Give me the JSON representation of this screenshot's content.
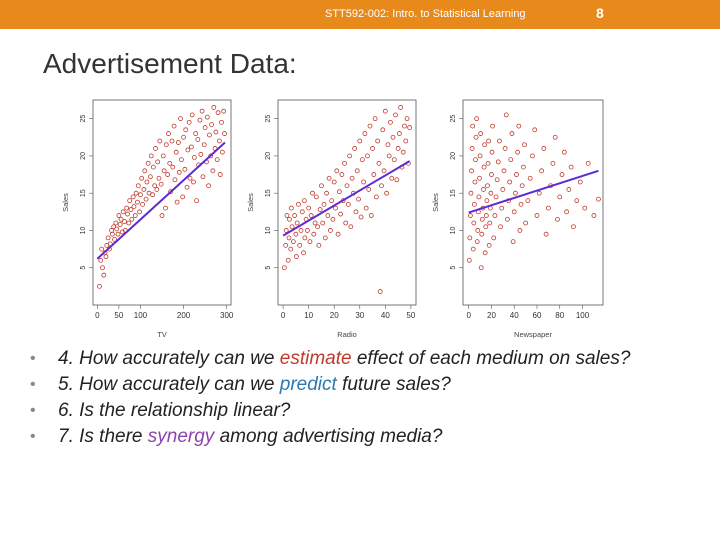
{
  "header": {
    "course": "STT592-002: Intro. to Statistical Learning",
    "page": "8"
  },
  "title": "Advertisement Data:",
  "chart_data": [
    {
      "type": "scatter",
      "xlabel": "TV",
      "ylabel": "Sales",
      "xticks": [
        0,
        50,
        100,
        200,
        300
      ],
      "yticks": [
        5,
        10,
        15,
        20,
        25
      ],
      "xlim": [
        -10,
        310
      ],
      "ylim": [
        0,
        27.5
      ],
      "fit_line": {
        "x": [
          0,
          296
        ],
        "y": [
          6.2,
          21.8
        ]
      },
      "points": [
        [
          5,
          2.5
        ],
        [
          8,
          6
        ],
        [
          10,
          7.5
        ],
        [
          12,
          5
        ],
        [
          15,
          4
        ],
        [
          18,
          7
        ],
        [
          20,
          6.5
        ],
        [
          22,
          8
        ],
        [
          25,
          9
        ],
        [
          28,
          7.5
        ],
        [
          30,
          8.2
        ],
        [
          33,
          10
        ],
        [
          35,
          9.5
        ],
        [
          38,
          10.5
        ],
        [
          40,
          8.8
        ],
        [
          43,
          11
        ],
        [
          45,
          10.2
        ],
        [
          48,
          9.5
        ],
        [
          50,
          12
        ],
        [
          53,
          10.8
        ],
        [
          55,
          11.5
        ],
        [
          58,
          9.8
        ],
        [
          60,
          12.5
        ],
        [
          63,
          11.2
        ],
        [
          65,
          10
        ],
        [
          68,
          13
        ],
        [
          70,
          12.2
        ],
        [
          73,
          11
        ],
        [
          75,
          14
        ],
        [
          78,
          12.8
        ],
        [
          80,
          11.5
        ],
        [
          83,
          14.5
        ],
        [
          85,
          13.2
        ],
        [
          88,
          12
        ],
        [
          90,
          15
        ],
        [
          93,
          13.8
        ],
        [
          95,
          16
        ],
        [
          98,
          12.5
        ],
        [
          100,
          14.8
        ],
        [
          103,
          17
        ],
        [
          105,
          13.5
        ],
        [
          108,
          15.5
        ],
        [
          110,
          18
        ],
        [
          113,
          14.2
        ],
        [
          115,
          16.5
        ],
        [
          118,
          19
        ],
        [
          120,
          15
        ],
        [
          123,
          17.2
        ],
        [
          125,
          20
        ],
        [
          128,
          14.8
        ],
        [
          130,
          18.5
        ],
        [
          133,
          16
        ],
        [
          135,
          21
        ],
        [
          138,
          15.5
        ],
        [
          140,
          19.2
        ],
        [
          143,
          17
        ],
        [
          145,
          22
        ],
        [
          148,
          16.2
        ],
        [
          150,
          12
        ],
        [
          153,
          20
        ],
        [
          155,
          18
        ],
        [
          158,
          13
        ],
        [
          160,
          21.5
        ],
        [
          163,
          17.5
        ],
        [
          165,
          23
        ],
        [
          168,
          19
        ],
        [
          170,
          15.2
        ],
        [
          173,
          22
        ],
        [
          175,
          18.5
        ],
        [
          178,
          24
        ],
        [
          180,
          16.8
        ],
        [
          183,
          20.5
        ],
        [
          185,
          13.8
        ],
        [
          188,
          21.8
        ],
        [
          190,
          17.8
        ],
        [
          193,
          25
        ],
        [
          195,
          19.5
        ],
        [
          198,
          14.5
        ],
        [
          200,
          22.5
        ],
        [
          203,
          18.2
        ],
        [
          205,
          23.5
        ],
        [
          208,
          15.8
        ],
        [
          210,
          20.8
        ],
        [
          213,
          24.5
        ],
        [
          215,
          17
        ],
        [
          218,
          21.2
        ],
        [
          220,
          25.5
        ],
        [
          223,
          16.5
        ],
        [
          225,
          19.8
        ],
        [
          228,
          23
        ],
        [
          230,
          14
        ],
        [
          233,
          22.2
        ],
        [
          235,
          18.8
        ],
        [
          238,
          24.8
        ],
        [
          240,
          20.2
        ],
        [
          243,
          26
        ],
        [
          245,
          17.2
        ],
        [
          248,
          21.5
        ],
        [
          250,
          23.8
        ],
        [
          253,
          19.2
        ],
        [
          255,
          25.2
        ],
        [
          258,
          16
        ],
        [
          260,
          22.8
        ],
        [
          263,
          20
        ],
        [
          265,
          24.2
        ],
        [
          268,
          18
        ],
        [
          270,
          26.5
        ],
        [
          273,
          21
        ],
        [
          275,
          23.2
        ],
        [
          278,
          19.5
        ],
        [
          280,
          25.8
        ],
        [
          283,
          22
        ],
        [
          285,
          17.5
        ],
        [
          288,
          24.5
        ],
        [
          290,
          20.5
        ],
        [
          293,
          26
        ],
        [
          295,
          23
        ]
      ]
    },
    {
      "type": "scatter",
      "xlabel": "Radio",
      "ylabel": "Sales",
      "xticks": [
        0,
        10,
        20,
        30,
        40,
        50
      ],
      "yticks": [
        5,
        10,
        15,
        20,
        25
      ],
      "xlim": [
        -2,
        52
      ],
      "ylim": [
        0,
        27.5
      ],
      "fit_line": {
        "x": [
          0,
          49.5
        ],
        "y": [
          9.3,
          19.3
        ]
      },
      "points": [
        [
          0.5,
          5
        ],
        [
          1,
          8
        ],
        [
          1.2,
          10
        ],
        [
          1.5,
          12
        ],
        [
          2,
          6
        ],
        [
          2.3,
          9
        ],
        [
          2.5,
          11.5
        ],
        [
          3,
          7.5
        ],
        [
          3.2,
          13
        ],
        [
          3.5,
          10.5
        ],
        [
          4,
          8.5
        ],
        [
          4.5,
          12
        ],
        [
          5,
          9.5
        ],
        [
          5.2,
          6.5
        ],
        [
          5.5,
          11
        ],
        [
          6,
          13.5
        ],
        [
          6.5,
          8
        ],
        [
          7,
          10
        ],
        [
          7.5,
          12.5
        ],
        [
          8,
          7
        ],
        [
          8.3,
          14
        ],
        [
          8.5,
          9
        ],
        [
          9,
          11.5
        ],
        [
          9.5,
          10
        ],
        [
          10,
          13
        ],
        [
          10.5,
          8.5
        ],
        [
          11,
          12
        ],
        [
          11.5,
          15
        ],
        [
          12,
          9.5
        ],
        [
          12.5,
          11
        ],
        [
          13,
          14.5
        ],
        [
          13.5,
          10.5
        ],
        [
          14,
          8
        ],
        [
          14.5,
          12.8
        ],
        [
          15,
          16
        ],
        [
          15.5,
          11
        ],
        [
          16,
          13.5
        ],
        [
          16.5,
          9
        ],
        [
          17,
          15
        ],
        [
          17.5,
          12
        ],
        [
          18,
          17
        ],
        [
          18.5,
          10
        ],
        [
          19,
          14
        ],
        [
          19.5,
          11.5
        ],
        [
          20,
          16.5
        ],
        [
          20.5,
          13
        ],
        [
          21,
          18
        ],
        [
          21.5,
          9.5
        ],
        [
          22,
          15.2
        ],
        [
          22.5,
          12.2
        ],
        [
          23,
          17.5
        ],
        [
          23.5,
          14
        ],
        [
          24,
          19
        ],
        [
          24.5,
          11
        ],
        [
          25,
          16
        ],
        [
          25.5,
          13.5
        ],
        [
          26,
          20
        ],
        [
          26.5,
          10.5
        ],
        [
          27,
          17
        ],
        [
          27.5,
          15
        ],
        [
          28,
          21
        ],
        [
          28.5,
          12.5
        ],
        [
          29,
          18
        ],
        [
          29.5,
          14.2
        ],
        [
          30,
          22
        ],
        [
          30.5,
          11.8
        ],
        [
          31,
          19.5
        ],
        [
          31.5,
          16.5
        ],
        [
          32,
          23
        ],
        [
          32.5,
          13
        ],
        [
          33,
          20
        ],
        [
          33.5,
          15.5
        ],
        [
          34,
          24
        ],
        [
          34.5,
          12
        ],
        [
          35,
          21
        ],
        [
          35.5,
          17.5
        ],
        [
          36,
          25
        ],
        [
          36.5,
          14.5
        ],
        [
          37,
          22
        ],
        [
          37.5,
          19
        ],
        [
          38,
          1.8
        ],
        [
          38.5,
          16
        ],
        [
          39,
          23.5
        ],
        [
          39.5,
          18
        ],
        [
          40,
          26
        ],
        [
          40.5,
          15
        ],
        [
          41,
          21.5
        ],
        [
          41.5,
          20
        ],
        [
          42,
          24.5
        ],
        [
          42.5,
          17
        ],
        [
          43,
          22.5
        ],
        [
          43.5,
          19.5
        ],
        [
          44,
          25.5
        ],
        [
          44.5,
          16.8
        ],
        [
          45,
          21
        ],
        [
          45.5,
          23
        ],
        [
          46,
          26.5
        ],
        [
          46.5,
          18.5
        ],
        [
          47,
          20.5
        ],
        [
          47.5,
          24
        ],
        [
          48,
          22
        ],
        [
          48.5,
          25
        ],
        [
          49,
          19
        ],
        [
          49.5,
          23.8
        ]
      ]
    },
    {
      "type": "scatter",
      "xlabel": "Newspaper",
      "ylabel": "Sales",
      "xticks": [
        0,
        20,
        40,
        60,
        80,
        100
      ],
      "yticks": [
        5,
        10,
        15,
        20,
        25
      ],
      "xlim": [
        -5,
        118
      ],
      "ylim": [
        0,
        27.5
      ],
      "fit_line": {
        "x": [
          0,
          114
        ],
        "y": [
          12.4,
          18.0
        ]
      },
      "points": [
        [
          0.5,
          6
        ],
        [
          1,
          9
        ],
        [
          1.5,
          12
        ],
        [
          2,
          15
        ],
        [
          2.5,
          18
        ],
        [
          3,
          21
        ],
        [
          3.5,
          24
        ],
        [
          4,
          7.5
        ],
        [
          4.5,
          11
        ],
        [
          5,
          13.5
        ],
        [
          5.5,
          16.5
        ],
        [
          6,
          19.5
        ],
        [
          6.5,
          22.5
        ],
        [
          7,
          25
        ],
        [
          7.5,
          8.5
        ],
        [
          8,
          10
        ],
        [
          8.5,
          12.5
        ],
        [
          9,
          14.5
        ],
        [
          9.5,
          17
        ],
        [
          10,
          20
        ],
        [
          10.5,
          23
        ],
        [
          11,
          5
        ],
        [
          11.5,
          9.5
        ],
        [
          12,
          11.5
        ],
        [
          12.5,
          13
        ],
        [
          13,
          15.5
        ],
        [
          13.5,
          18.5
        ],
        [
          14,
          21.5
        ],
        [
          14.5,
          7
        ],
        [
          15,
          10.5
        ],
        [
          15.5,
          12
        ],
        [
          16,
          14
        ],
        [
          16.5,
          16
        ],
        [
          17,
          19
        ],
        [
          17.5,
          22
        ],
        [
          18,
          8
        ],
        [
          18.5,
          11
        ],
        [
          19,
          13
        ],
        [
          19.5,
          15
        ],
        [
          20,
          17.5
        ],
        [
          20.5,
          20.5
        ],
        [
          21,
          24
        ],
        [
          22,
          9
        ],
        [
          23,
          12
        ],
        [
          24,
          14.5
        ],
        [
          25,
          16.8
        ],
        [
          26,
          19.2
        ],
        [
          27,
          22
        ],
        [
          28,
          10.5
        ],
        [
          29,
          13
        ],
        [
          30,
          15.5
        ],
        [
          31,
          18
        ],
        [
          32,
          21
        ],
        [
          33,
          25.5
        ],
        [
          34,
          11.5
        ],
        [
          35,
          14
        ],
        [
          36,
          16.5
        ],
        [
          37,
          19.5
        ],
        [
          38,
          23
        ],
        [
          39,
          8.5
        ],
        [
          40,
          12.5
        ],
        [
          41,
          15
        ],
        [
          42,
          17.5
        ],
        [
          43,
          20.5
        ],
        [
          44,
          24
        ],
        [
          45,
          10
        ],
        [
          46,
          13.5
        ],
        [
          47,
          16
        ],
        [
          48,
          18.5
        ],
        [
          49,
          21.5
        ],
        [
          50,
          11
        ],
        [
          52,
          14
        ],
        [
          54,
          17
        ],
        [
          56,
          20
        ],
        [
          58,
          23.5
        ],
        [
          60,
          12
        ],
        [
          62,
          15
        ],
        [
          64,
          18
        ],
        [
          66,
          21
        ],
        [
          68,
          9.5
        ],
        [
          70,
          13
        ],
        [
          72,
          16
        ],
        [
          74,
          19
        ],
        [
          76,
          22.5
        ],
        [
          78,
          11.5
        ],
        [
          80,
          14.5
        ],
        [
          82,
          17.5
        ],
        [
          84,
          20.5
        ],
        [
          86,
          12.5
        ],
        [
          88,
          15.5
        ],
        [
          90,
          18.5
        ],
        [
          92,
          10.5
        ],
        [
          95,
          14
        ],
        [
          98,
          16.5
        ],
        [
          102,
          13
        ],
        [
          105,
          19
        ],
        [
          110,
          12
        ],
        [
          114,
          14.2
        ]
      ]
    }
  ],
  "bullets": [
    {
      "before": "4. How accurately can we ",
      "keyword": "estimate",
      "after": " effect of each medium on sales?"
    },
    {
      "before": "5. How accurately can we ",
      "keyword": "predict",
      "after": " future sales?"
    },
    {
      "before": "6. Is the relationship linear?",
      "keyword": "",
      "after": ""
    },
    {
      "before": "7. Is there ",
      "keyword": "synergy",
      "after": " among advertising media?"
    }
  ],
  "colors": {
    "header": "#e8891c",
    "points": "#c0392b",
    "fit_line": "#5b2bd6",
    "estimate": "#c0392b",
    "predict": "#2a7ab0",
    "synergy": "#8e44ad"
  }
}
